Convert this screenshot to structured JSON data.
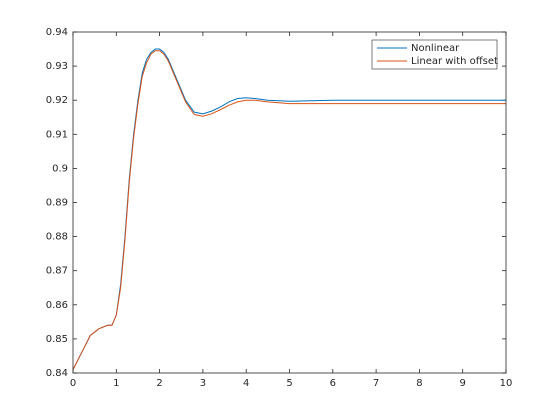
{
  "chart_data": {
    "type": "line",
    "x": [
      0,
      0.2,
      0.4,
      0.6,
      0.8,
      0.9,
      1.0,
      1.1,
      1.2,
      1.3,
      1.4,
      1.5,
      1.6,
      1.7,
      1.8,
      1.9,
      2.0,
      2.1,
      2.2,
      2.4,
      2.6,
      2.8,
      3.0,
      3.2,
      3.4,
      3.6,
      3.8,
      4.0,
      4.2,
      4.5,
      5,
      6,
      7,
      8,
      9,
      10
    ],
    "series": [
      {
        "name": "Nonlinear",
        "color": "#0072bd",
        "values": [
          0.841,
          0.846,
          0.851,
          0.853,
          0.854,
          0.854,
          0.857,
          0.866,
          0.88,
          0.897,
          0.91,
          0.92,
          0.928,
          0.932,
          0.934,
          0.935,
          0.935,
          0.934,
          0.932,
          0.926,
          0.92,
          0.9165,
          0.916,
          0.9168,
          0.918,
          0.9195,
          0.9205,
          0.9207,
          0.9205,
          0.92,
          0.9197,
          0.92,
          0.92,
          0.92,
          0.92,
          0.92
        ]
      },
      {
        "name": "Linear with offset",
        "color": "#d95319",
        "values": [
          0.841,
          0.846,
          0.851,
          0.853,
          0.854,
          0.854,
          0.857,
          0.865,
          0.879,
          0.896,
          0.909,
          0.919,
          0.927,
          0.931,
          0.9335,
          0.9345,
          0.9345,
          0.9335,
          0.9315,
          0.9255,
          0.9195,
          0.9158,
          0.9153,
          0.916,
          0.9172,
          0.9185,
          0.9195,
          0.92,
          0.92,
          0.9195,
          0.919,
          0.919,
          0.919,
          0.919,
          0.919,
          0.919
        ]
      }
    ],
    "xlim": [
      0,
      10
    ],
    "xticks": [
      0,
      1,
      2,
      3,
      4,
      5,
      6,
      7,
      8,
      9,
      10
    ],
    "ylim": [
      0.84,
      0.94
    ],
    "yticks": [
      0.84,
      0.85,
      0.86,
      0.87,
      0.88,
      0.89,
      0.9,
      0.91,
      0.92,
      0.93,
      0.94
    ],
    "grid": false,
    "legend_position": "northeast"
  }
}
